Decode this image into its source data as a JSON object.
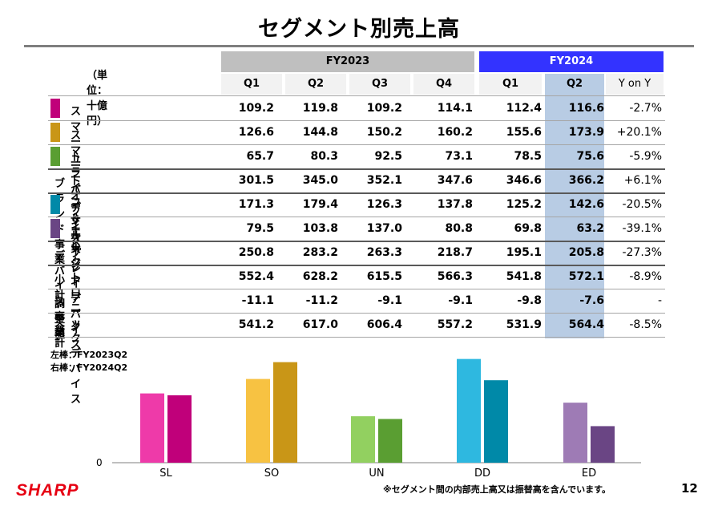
{
  "title": "セグメント別売上高",
  "unit_label": "（単位：十億円）",
  "fy2023_label": "FY2023",
  "fy2024_label": "FY2024",
  "columns": [
    "Q1",
    "Q2",
    "Q3",
    "Q4",
    "Q1",
    "Q2",
    "Y on Y"
  ],
  "rows": [
    {
      "label": "スマートライフ＆エナジー",
      "swatch": "#c0007a",
      "values": [
        "109.2",
        "119.8",
        "109.2",
        "114.1",
        "112.4",
        "116.6",
        "-2.7%"
      ]
    },
    {
      "label": "スマートオフィス",
      "swatch": "#c99617",
      "values": [
        "126.6",
        "144.8",
        "150.2",
        "160.2",
        "155.6",
        "173.9",
        "+20.1%"
      ]
    },
    {
      "label": "ユニバーサルネットワーク",
      "swatch": "#5a9e32",
      "values": [
        "65.7",
        "80.3",
        "92.5",
        "73.1",
        "78.5",
        "75.6",
        "-5.9%"
      ]
    },
    {
      "label": "ブランド事業",
      "swatch": "",
      "values": [
        "301.5",
        "345.0",
        "352.1",
        "347.6",
        "346.6",
        "366.2",
        "+6.1%"
      ]
    },
    {
      "label": "ディスプレイデバイス",
      "swatch": "#0089a8",
      "values": [
        "171.3",
        "179.4",
        "126.3",
        "137.8",
        "125.2",
        "142.6",
        "-20.5%"
      ]
    },
    {
      "label": "エレクトロニックデバイス",
      "swatch": "#6a4584",
      "values": [
        "79.5",
        "103.8",
        "137.0",
        "80.8",
        "69.8",
        "63.2",
        "-39.1%"
      ]
    },
    {
      "label": "デバイス事業",
      "swatch": "",
      "values": [
        "250.8",
        "283.2",
        "263.3",
        "218.7",
        "195.1",
        "205.8",
        "-27.3%"
      ]
    },
    {
      "label": "小計",
      "swatch": "",
      "values": [
        "552.4",
        "628.2",
        "615.5",
        "566.3",
        "541.8",
        "572.1",
        "-8.9%"
      ]
    },
    {
      "label": "調整額",
      "swatch": "",
      "values": [
        "-11.1",
        "-11.2",
        "-9.1",
        "-9.1",
        "-9.8",
        "-7.6",
        "-"
      ]
    },
    {
      "label": "合計",
      "swatch": "",
      "values": [
        "541.2",
        "617.0",
        "606.4",
        "557.2",
        "531.9",
        "564.4",
        "-8.5%"
      ]
    }
  ],
  "chart_note_left": "左棒：FY2023Q2",
  "chart_note_right": "右棒：FY2024Q2",
  "chart_data": {
    "type": "bar",
    "categories": [
      "SL",
      "SO",
      "UN",
      "DD",
      "ED"
    ],
    "series": [
      {
        "values": [
          119.8,
          144.8,
          80.3,
          179.4,
          103.8
        ],
        "colors": [
          "#ee3aa9",
          "#f7c242",
          "#92d060",
          "#2eb8e0",
          "#9e7bb5"
        ]
      },
      {
        "values": [
          116.6,
          173.9,
          75.6,
          142.6,
          63.2
        ],
        "colors": [
          "#c0007a",
          "#c99617",
          "#5a9e32",
          "#0089a8",
          "#6a4584"
        ]
      }
    ],
    "ylim": [
      0,
      190
    ],
    "y_zero_label": "0"
  },
  "footnote": "※セグメント間の内部売上高又は振替高を含んでいます。",
  "page_number": "12",
  "logo_text": "SHARP"
}
